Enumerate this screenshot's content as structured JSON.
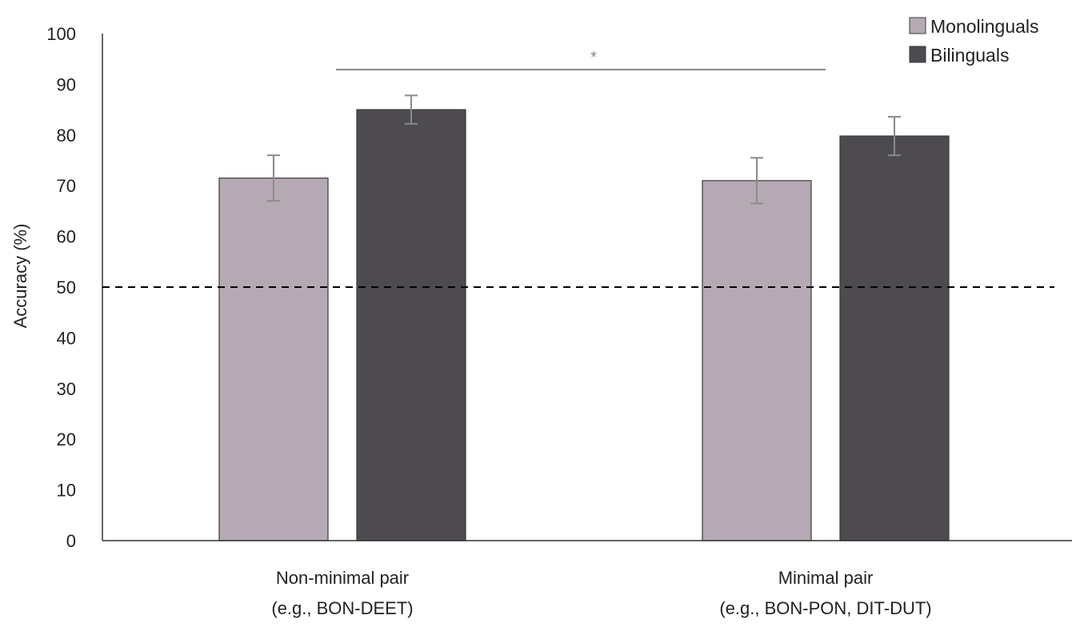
{
  "chart_data": {
    "type": "bar",
    "title": "",
    "xlabel": "",
    "ylabel": "Accuracy (%)",
    "ylim": [
      0,
      100
    ],
    "yticks": [
      0,
      10,
      20,
      30,
      40,
      50,
      60,
      70,
      80,
      90,
      100
    ],
    "grid": false,
    "legend_position": "top-right",
    "categories": [
      [
        "Non-minimal pair",
        "(e.g., BON-DEET)"
      ],
      [
        "Minimal pair",
        "(e.g., BON-PON, DIT-DUT)"
      ]
    ],
    "series": [
      {
        "name": "Monolinguals",
        "color": "#b5aab3",
        "values": [
          71.5,
          71
        ],
        "errors": [
          4.5,
          4.5
        ]
      },
      {
        "name": "Bilinguals",
        "color": "#4d4b50",
        "values": [
          85,
          79.8
        ],
        "errors": [
          2.8,
          3.8
        ]
      }
    ],
    "reference_line": {
      "value": 50,
      "style": "dashed"
    },
    "significance": {
      "label": "*",
      "from_category": 0,
      "to_category": 1
    }
  }
}
